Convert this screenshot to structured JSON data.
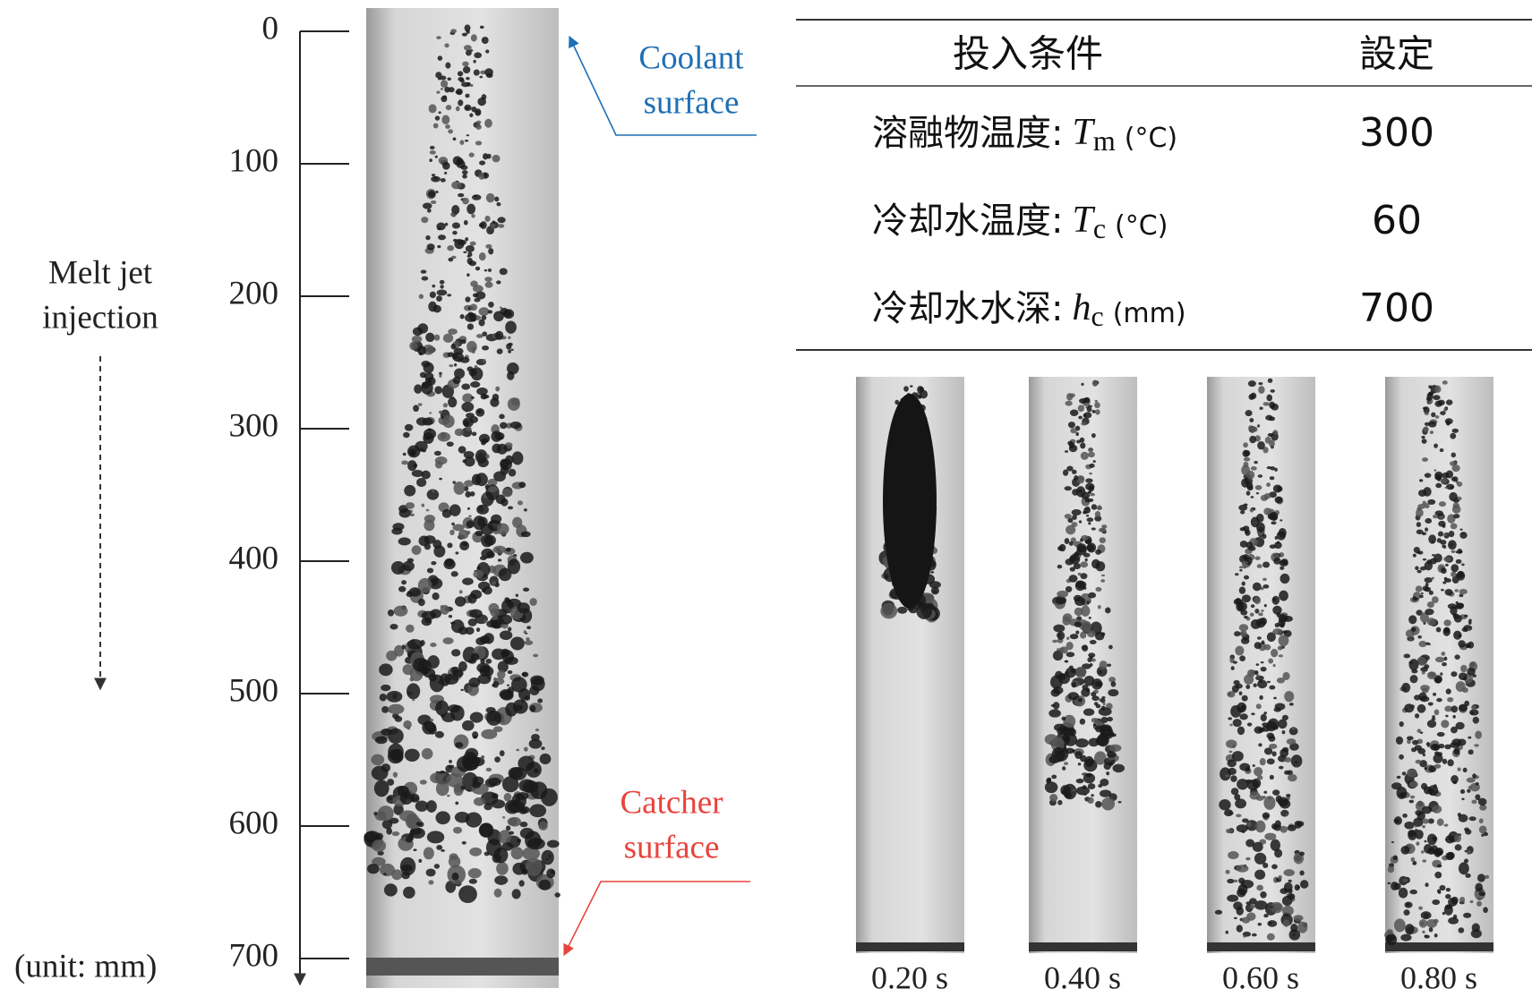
{
  "scale": {
    "ticks": [
      0,
      100,
      200,
      300,
      400,
      500,
      600,
      700
    ],
    "unit_label": "(unit: mm)"
  },
  "injection_label": [
    "Melt jet",
    "injection"
  ],
  "coolant_label": [
    "Coolant",
    "surface"
  ],
  "catcher_label": [
    "Catcher",
    "surface"
  ],
  "table": {
    "header": [
      "投入条件",
      "設定"
    ],
    "rows": [
      {
        "label": "溶融物温度:",
        "symbol": "T",
        "subscript": "m",
        "unit": "(°C)",
        "value": "300"
      },
      {
        "label": "冷却水温度:",
        "symbol": "T",
        "subscript": "c",
        "unit": "(°C)",
        "value": "60"
      },
      {
        "label": "冷却水水深:",
        "symbol": "h",
        "subscript": "c",
        "unit": "(mm)",
        "value": "700"
      }
    ]
  },
  "frames": [
    "0.20 s",
    "0.40 s",
    "0.60 s",
    "0.80 s"
  ]
}
